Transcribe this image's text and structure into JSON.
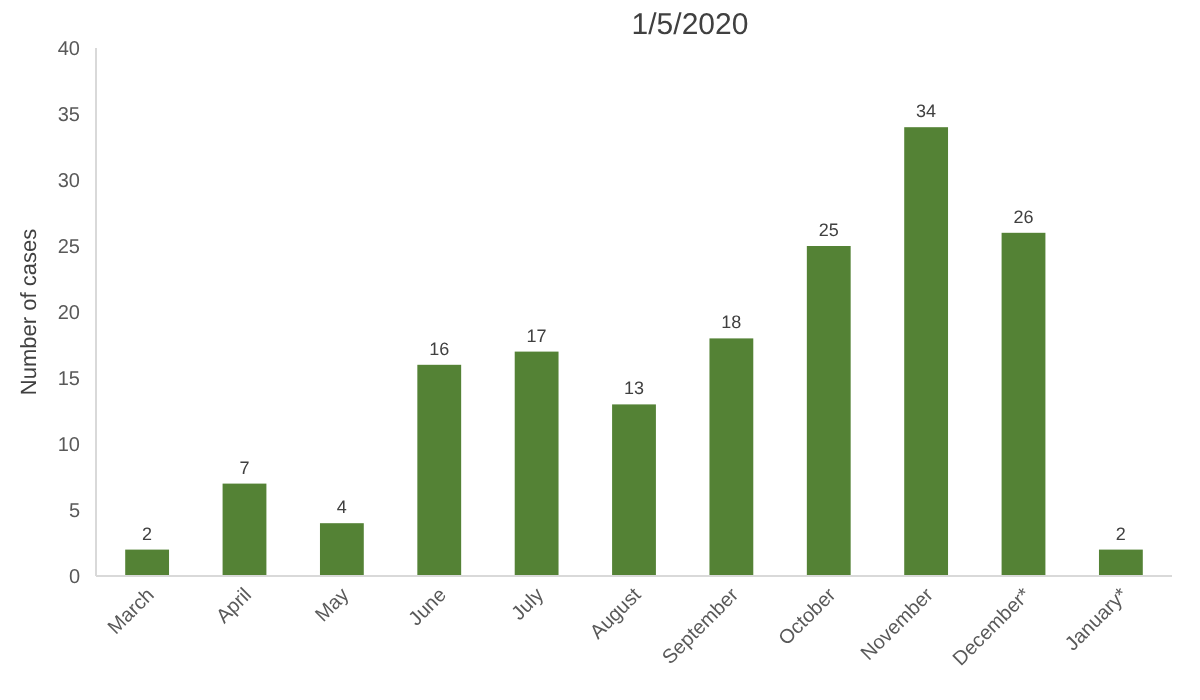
{
  "chart_data": {
    "type": "bar",
    "title": "1/5/2020",
    "ylabel": "Number of cases",
    "categories": [
      "March",
      "April",
      "May",
      "June",
      "July",
      "August",
      "September",
      "October",
      "November",
      "December*",
      "January*"
    ],
    "values": [
      2,
      7,
      4,
      16,
      17,
      13,
      18,
      25,
      34,
      26,
      2
    ],
    "color": "#548235",
    "ylim": [
      0,
      40
    ],
    "yticks": [
      0,
      5,
      10,
      15,
      20,
      25,
      30,
      35,
      40
    ],
    "data_labels": true,
    "grid": false
  }
}
